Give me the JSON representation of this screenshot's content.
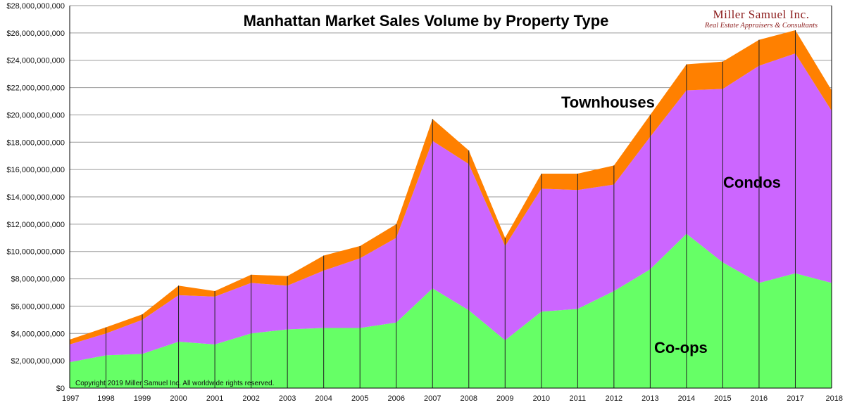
{
  "brand": {
    "name": "Miller Samuel Inc.",
    "tagline": "Real Estate Appraisers & Consultants"
  },
  "copyright": "Copyright 2019 Miller Samuel Inc.  All worldwide rights reserved.",
  "chart_data": {
    "type": "area",
    "stacked": true,
    "title": "Manhattan Market Sales Volume by Property Type",
    "xlabel": "",
    "ylabel": "",
    "x": [
      "1997",
      "1998",
      "1999",
      "2000",
      "2001",
      "2002",
      "2003",
      "2004",
      "2005",
      "2006",
      "2007",
      "2008",
      "2009",
      "2010",
      "2011",
      "2012",
      "2013",
      "2014",
      "2015",
      "2016",
      "2017",
      "2018"
    ],
    "ylim": [
      0,
      28000000000
    ],
    "yticks": [
      0,
      2000000000,
      4000000000,
      6000000000,
      8000000000,
      10000000000,
      12000000000,
      14000000000,
      16000000000,
      18000000000,
      20000000000,
      22000000000,
      24000000000,
      26000000000,
      28000000000
    ],
    "ytick_labels": [
      "$0",
      "$2,000,000,000",
      "$4,000,000,000",
      "$6,000,000,000",
      "$8,000,000,000",
      "$10,000,000,000",
      "$12,000,000,000",
      "$14,000,000,000",
      "$16,000,000,000",
      "$18,000,000,000",
      "$20,000,000,000",
      "$22,000,000,000",
      "$24,000,000,000",
      "$26,000,000,000",
      "$28,000,000,000"
    ],
    "grid": true,
    "series": [
      {
        "name": "Co-ops",
        "color": "#66ff66",
        "values": [
          1900000000,
          2400000000,
          2500000000,
          3400000000,
          3200000000,
          4000000000,
          4300000000,
          4400000000,
          4400000000,
          4800000000,
          7300000000,
          5700000000,
          3500000000,
          5600000000,
          5800000000,
          7100000000,
          8700000000,
          11300000000,
          9200000000,
          7700000000,
          8400000000,
          7700000000
        ]
      },
      {
        "name": "Condos",
        "color": "#cc66ff",
        "values": [
          1300000000,
          1600000000,
          2500000000,
          3400000000,
          3500000000,
          3700000000,
          3200000000,
          4200000000,
          5100000000,
          6200000000,
          10800000000,
          10700000000,
          6900000000,
          9000000000,
          8700000000,
          7800000000,
          9700000000,
          10500000000,
          12700000000,
          15900000000,
          16100000000,
          12600000000
        ]
      },
      {
        "name": "Townhouses",
        "color": "#ff8000",
        "values": [
          350000000,
          450000000,
          400000000,
          700000000,
          400000000,
          600000000,
          700000000,
          1100000000,
          900000000,
          1000000000,
          1600000000,
          1000000000,
          600000000,
          1100000000,
          1200000000,
          1400000000,
          1600000000,
          1900000000,
          2000000000,
          1900000000,
          1700000000,
          1500000000
        ]
      }
    ],
    "annotations": [
      "Townhouses",
      "Condos",
      "Co-ops"
    ]
  }
}
